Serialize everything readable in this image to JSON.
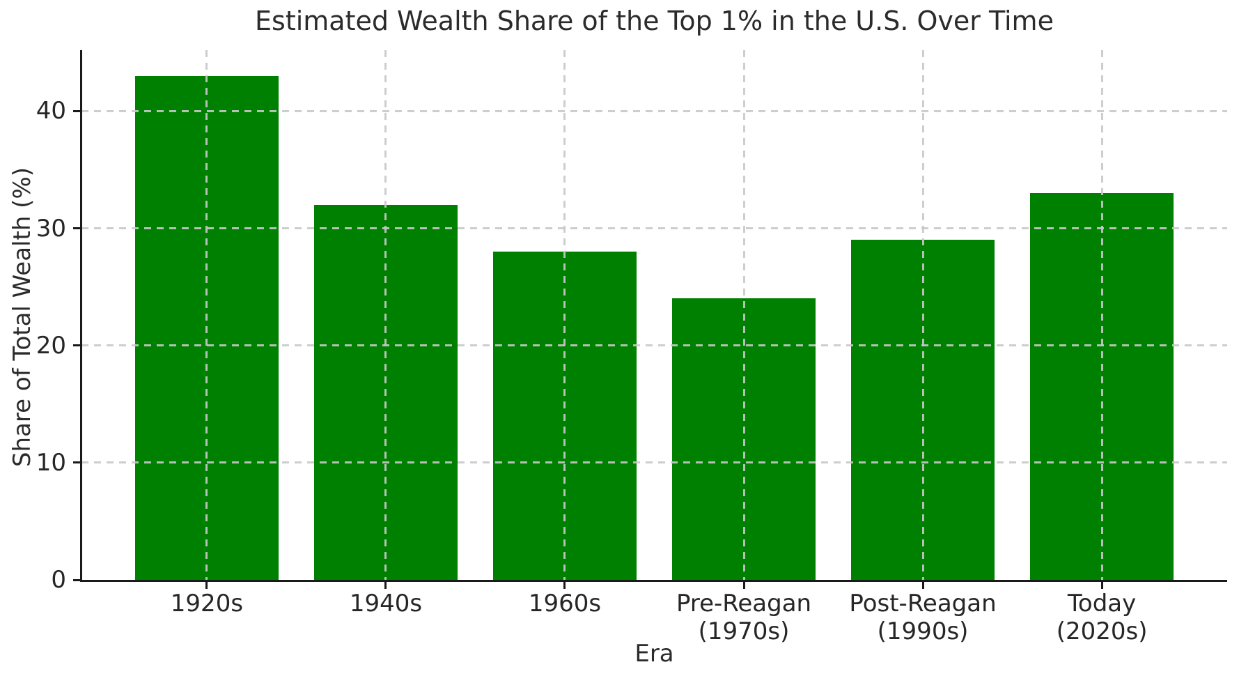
{
  "chart_data": {
    "type": "bar",
    "title": "Estimated Wealth Share of the Top 1% in the U.S. Over Time",
    "xlabel": "Era",
    "ylabel": "Share of Total Wealth (%)",
    "categories": [
      "1920s",
      "1940s",
      "1960s",
      "Pre-Reagan\n(1970s)",
      "Post-Reagan\n(1990s)",
      "Today\n(2020s)"
    ],
    "values": [
      43,
      32,
      28,
      24,
      29,
      33
    ],
    "yticks": [
      0,
      10,
      20,
      30,
      40
    ],
    "ylim": [
      0,
      45.2
    ],
    "bar_color": "#008000",
    "bar_width_fraction": 0.8,
    "grid": true,
    "grid_line_style": "dashed",
    "grid_color": "#c8c8c8",
    "legend_position": "none",
    "spines": [
      "left",
      "bottom"
    ]
  }
}
